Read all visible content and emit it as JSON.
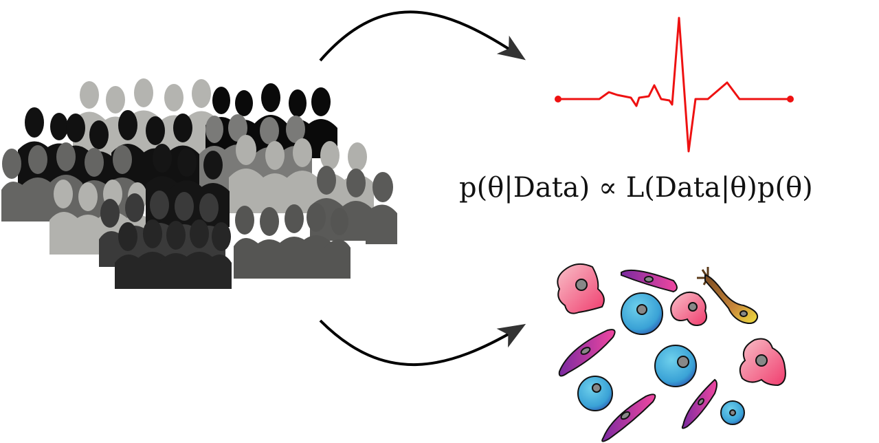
{
  "formula": {
    "text": "p(θ|Data) ∝ L(Data|θ)p(θ)"
  },
  "icons": {
    "crowd": "crowd-silhouette-icon",
    "signal": "ecg-signal-icon",
    "cells": "cell-collection-icon",
    "arrows": "curved-arrow-icon"
  },
  "colors": {
    "signal": "#ee1111",
    "arrow": "#000000",
    "cell_pink": "#f04a7a",
    "cell_magenta": "#d23aa8",
    "cell_blue": "#3aa8d8",
    "cell_yellow": "#e8d840"
  }
}
